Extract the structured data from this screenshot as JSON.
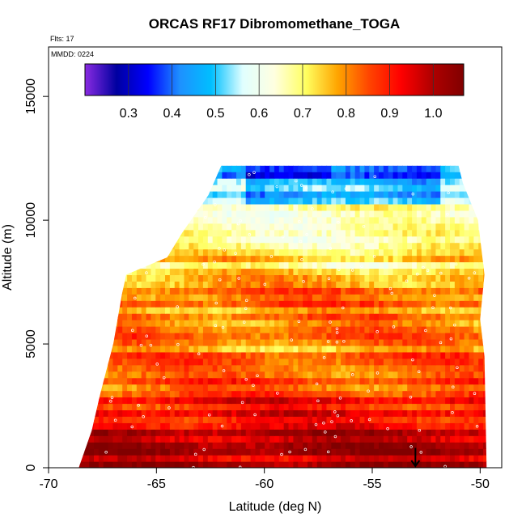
{
  "chart_data": {
    "type": "heatmap",
    "title": "ORCAS RF17 Dibromomethane_TOGA",
    "flights_label": "Flts: 17",
    "date_label": "MMDD: 0224",
    "xlabel": "Latitude (deg N)",
    "ylabel": "Altitude (m)",
    "xlim": [
      -70,
      -49
    ],
    "ylim": [
      0,
      17000
    ],
    "x_ticks": [
      -70,
      -65,
      -60,
      -55,
      -50
    ],
    "y_ticks": [
      0,
      5000,
      10000,
      15000
    ],
    "colorbar": {
      "range": [
        0.2,
        1.07
      ],
      "ticks": [
        0.3,
        0.4,
        0.5,
        0.6,
        0.7,
        0.8,
        0.9,
        1.0
      ],
      "tick_labels": [
        "0.3",
        "0.4",
        "0.5",
        "0.6",
        "0.7",
        "0.8",
        "0.9",
        "1.0"
      ],
      "colors": [
        "#8a2be2",
        "#0000a0",
        "#0000ff",
        "#1e90ff",
        "#00bfff",
        "#e0ffff",
        "#ffffe0",
        "#ffff60",
        "#ffa500",
        "#ff4500",
        "#ff0000",
        "#b00000",
        "#800000"
      ]
    },
    "valid_region": {
      "left_edge": [
        [
          0,
          -68.6
        ],
        [
          1500,
          -68.0
        ],
        [
          3000,
          -67.6
        ],
        [
          5000,
          -67.0
        ],
        [
          7000,
          -66.6
        ],
        [
          7800,
          -66.4
        ],
        [
          8500,
          -64.5
        ],
        [
          9500,
          -63.8
        ],
        [
          11000,
          -62.6
        ],
        [
          12200,
          -62.0
        ]
      ],
      "right_edge": [
        [
          0,
          -49.7
        ],
        [
          4500,
          -49.8
        ],
        [
          6000,
          -50.0
        ],
        [
          7800,
          -49.8
        ],
        [
          10000,
          -50.1
        ],
        [
          11500,
          -50.8
        ],
        [
          12200,
          -51.0
        ]
      ]
    },
    "profile": [
      {
        "alt": 0,
        "value": 1.0
      },
      {
        "alt": 300,
        "value": 0.97
      },
      {
        "alt": 700,
        "value": 1.02
      },
      {
        "alt": 1000,
        "value": 0.95
      },
      {
        "alt": 1500,
        "value": 0.97
      },
      {
        "alt": 2000,
        "value": 0.93
      },
      {
        "alt": 2500,
        "value": 0.9
      },
      {
        "alt": 3000,
        "value": 0.87
      },
      {
        "alt": 3500,
        "value": 0.84
      },
      {
        "alt": 4000,
        "value": 0.88
      },
      {
        "alt": 4500,
        "value": 0.82
      },
      {
        "alt": 5000,
        "value": 0.78
      },
      {
        "alt": 5500,
        "value": 0.83
      },
      {
        "alt": 6000,
        "value": 0.8
      },
      {
        "alt": 6500,
        "value": 0.85
      },
      {
        "alt": 7000,
        "value": 0.82
      },
      {
        "alt": 7500,
        "value": 0.78
      },
      {
        "alt": 8000,
        "value": 0.72
      },
      {
        "alt": 9000,
        "value": 0.7
      },
      {
        "alt": 10000,
        "value": 0.68
      },
      {
        "alt": 11000,
        "value": 0.58
      },
      {
        "alt": 12000,
        "value": 0.48
      }
    ],
    "arrow_marker": {
      "lat": -53.0,
      "alt_top": 800,
      "alt_bottom": 0
    }
  }
}
